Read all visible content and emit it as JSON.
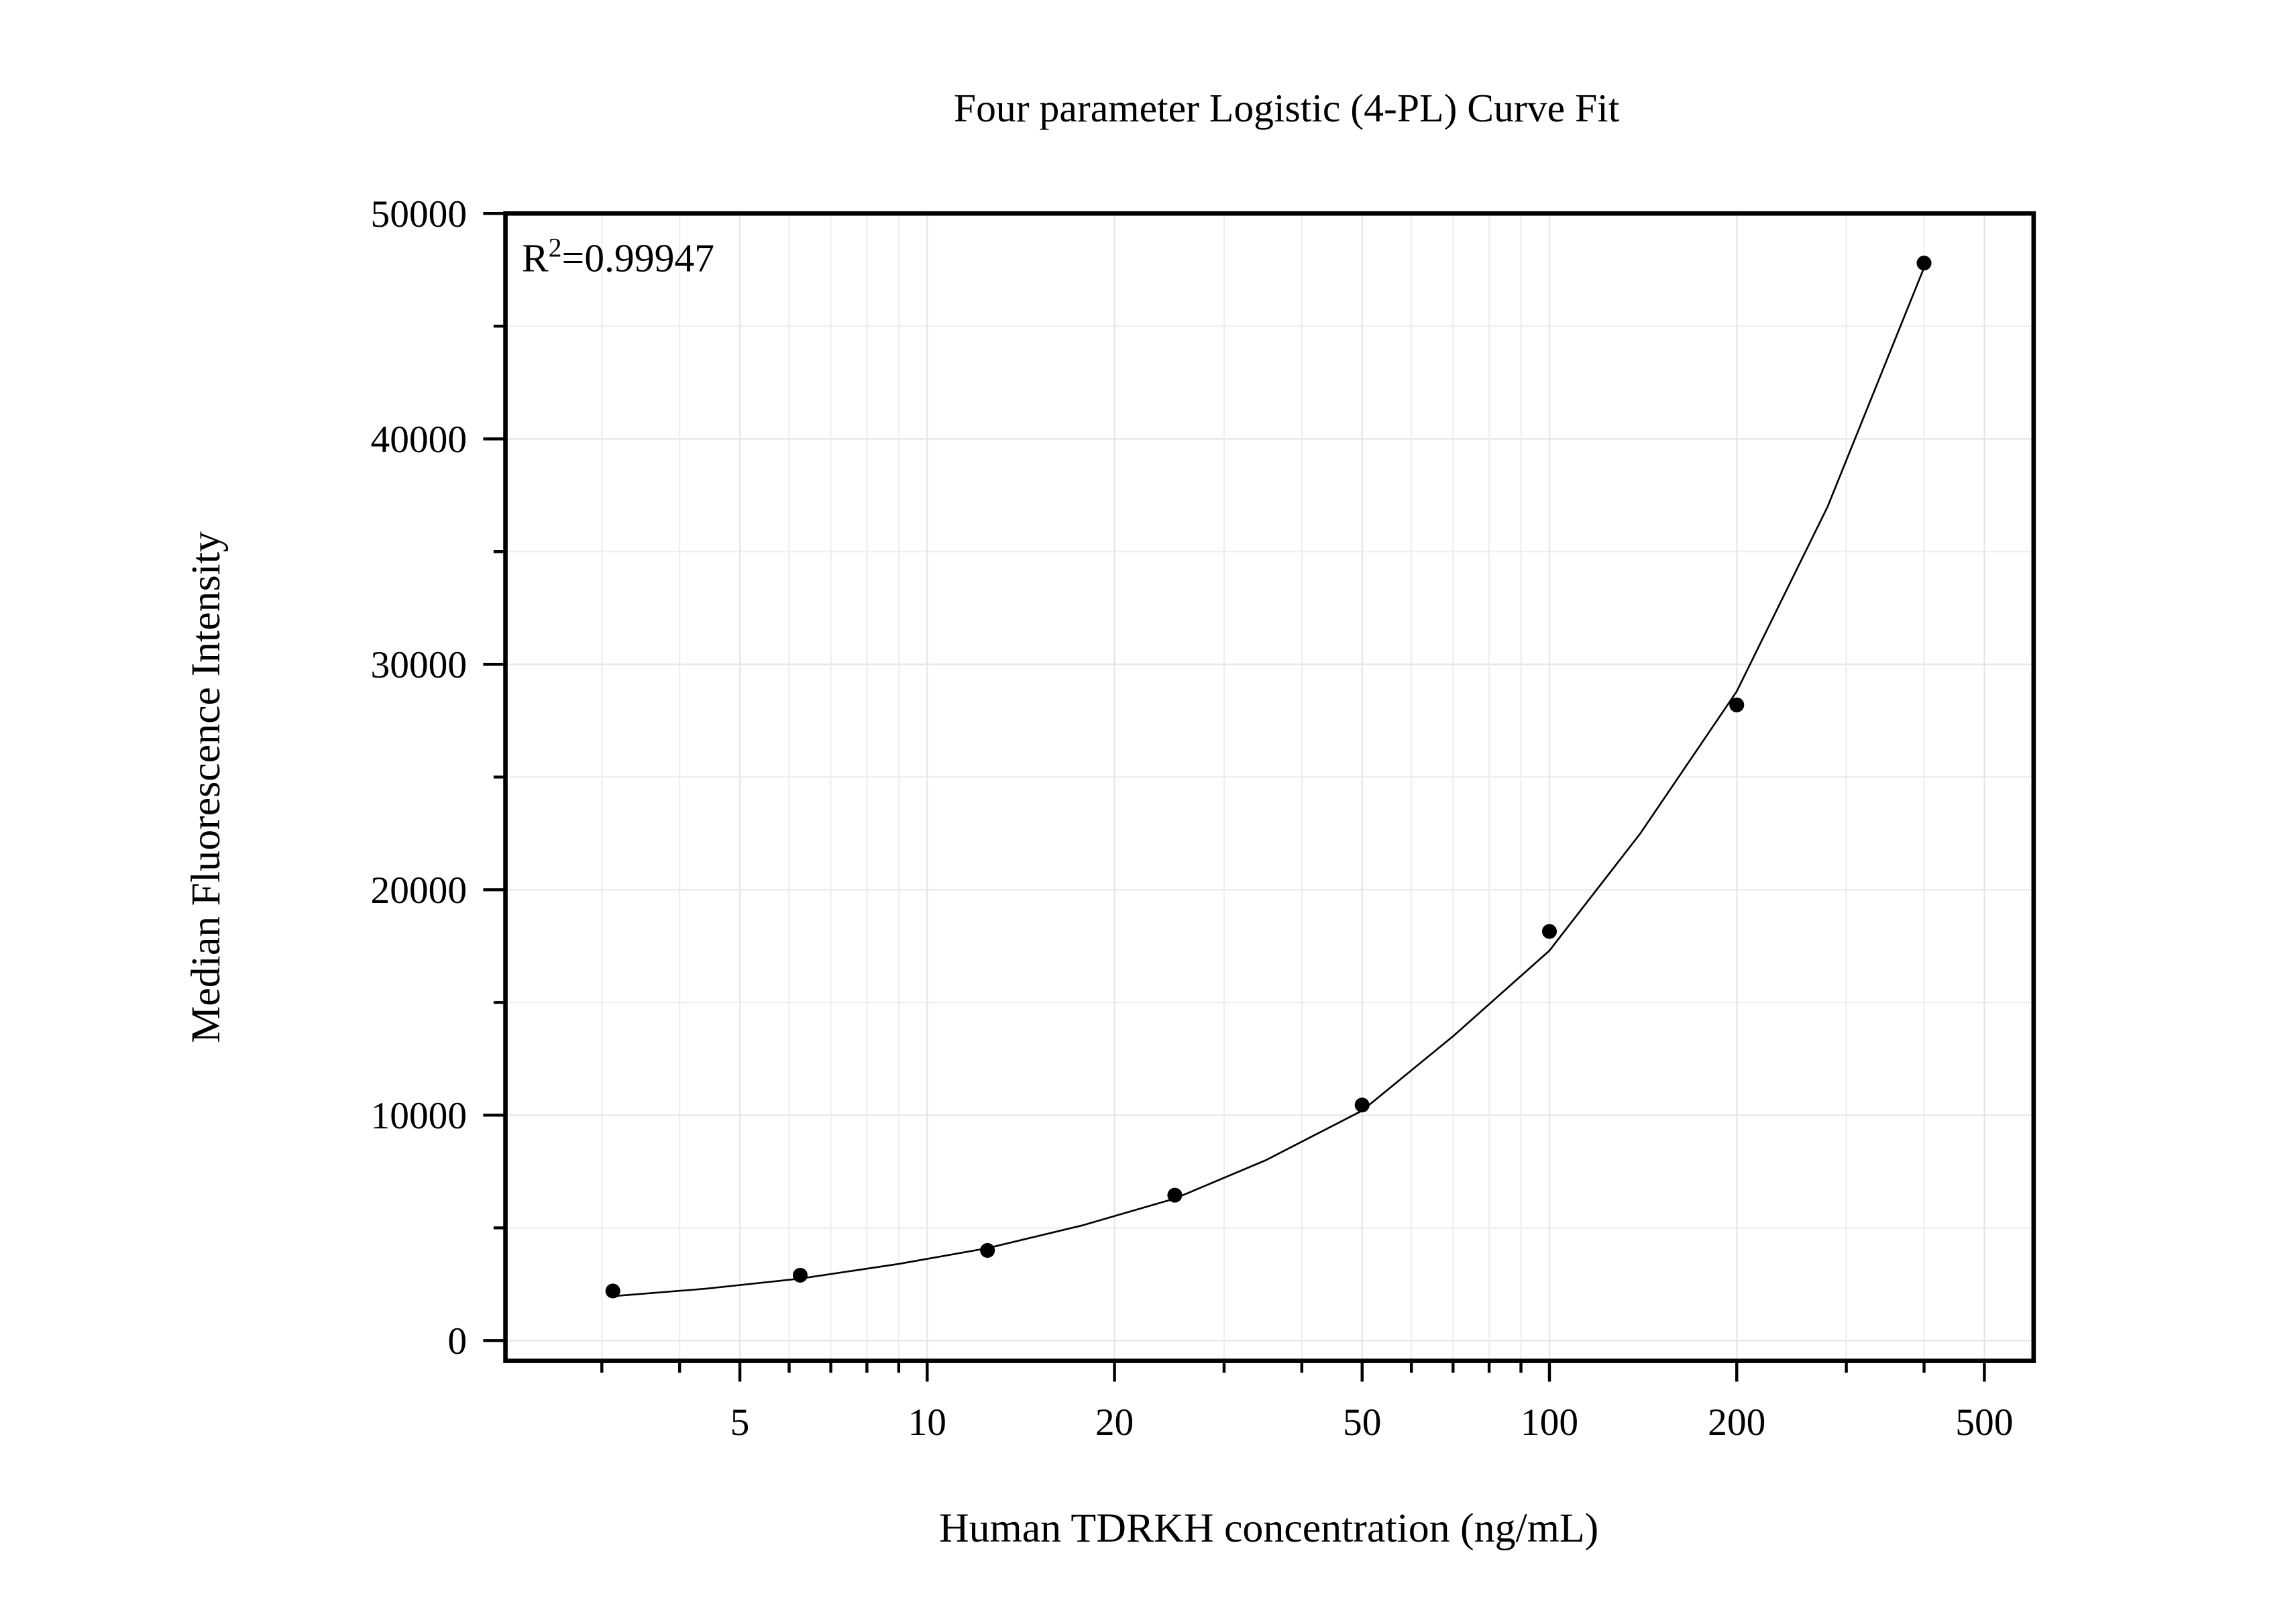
{
  "chart_data": {
    "type": "scatter",
    "title": "Four parameter Logistic (4-PL) Curve Fit",
    "xlabel": "Human TDRKH concentration (ng/mL)",
    "ylabel": "Median Fluorescence Intensity",
    "annotation": {
      "text": "R",
      "sup": "2",
      "rest": "=0.99947"
    },
    "xscale": "log",
    "xlim": [
      2.1,
      600
    ],
    "ylim": [
      -900,
      50000
    ],
    "xticks": [
      5,
      10,
      20,
      50,
      100,
      200,
      500
    ],
    "xminorticks": [
      3,
      4,
      6,
      7,
      8,
      9,
      30,
      40,
      60,
      70,
      80,
      90,
      300,
      400
    ],
    "yticks": [
      0,
      10000,
      20000,
      30000,
      40000,
      50000
    ],
    "yminorticks": [
      5000,
      15000,
      25000,
      35000,
      45000
    ],
    "grid": true,
    "series": [
      {
        "name": "data",
        "color": "#000000",
        "style": "points",
        "x": [
          3.125,
          6.25,
          12.5,
          25,
          50,
          100,
          200,
          400
        ],
        "values": [
          2200,
          2900,
          4000,
          6450,
          10450,
          18150,
          28200,
          47800
        ]
      },
      {
        "name": "fit",
        "color": "#000000",
        "style": "line",
        "x": [
          3.125,
          4.4,
          6.25,
          9,
          12.5,
          17.7,
          25,
          35,
          50,
          70,
          100,
          140,
          200,
          280,
          400
        ],
        "values": [
          1970,
          2300,
          2750,
          3400,
          4100,
          5100,
          6300,
          8000,
          10200,
          13500,
          17300,
          22500,
          28800,
          37000,
          47600
        ]
      }
    ]
  }
}
